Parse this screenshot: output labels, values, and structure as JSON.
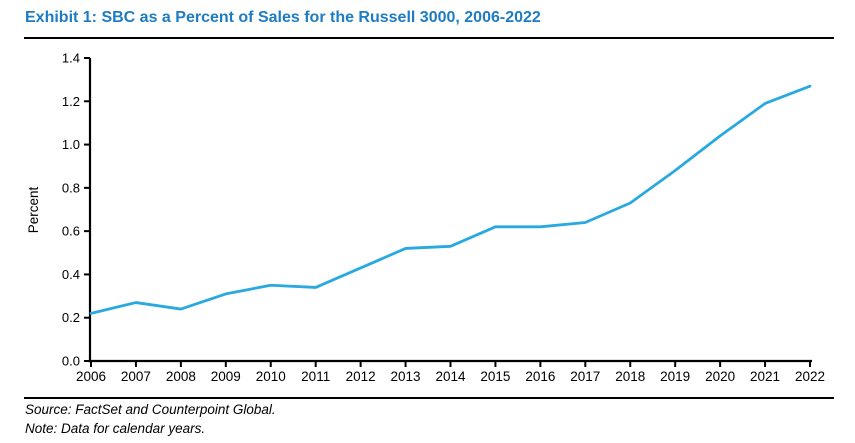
{
  "header": {
    "title": "Exhibit 1: SBC as a Percent of Sales for the Russell 3000, 2006-2022"
  },
  "colors": {
    "title_blue": "#1E7CC2",
    "line_blue": "#29A9DF",
    "axis_black": "#000000"
  },
  "chart_data": {
    "type": "line",
    "title": "Exhibit 1: SBC as a Percent of Sales for the Russell 3000, 2006-2022",
    "categories": [
      "2006",
      "2007",
      "2008",
      "2009",
      "2010",
      "2011",
      "2012",
      "2013",
      "2014",
      "2015",
      "2016",
      "2017",
      "2018",
      "2019",
      "2020",
      "2021",
      "2022"
    ],
    "series": [
      {
        "name": "SBC as a Percent of Sales",
        "values": [
          0.22,
          0.27,
          0.24,
          0.31,
          0.35,
          0.34,
          0.43,
          0.52,
          0.53,
          0.62,
          0.62,
          0.64,
          0.73,
          0.88,
          1.04,
          1.19,
          1.27
        ]
      }
    ],
    "xlabel": "",
    "ylabel": "Percent",
    "ylim": [
      0.0,
      1.4
    ],
    "ytick_labels": [
      "0.0",
      "0.2",
      "0.4",
      "0.6",
      "0.8",
      "1.0",
      "1.2",
      "1.4"
    ],
    "ytick_values": [
      0.0,
      0.2,
      0.4,
      0.6,
      0.8,
      1.0,
      1.2,
      1.4
    ],
    "grid": false,
    "legend_position": "none",
    "line_color": "#29A9DF"
  },
  "footer": {
    "source": "Source: FactSet and Counterpoint Global.",
    "note": "Note: Data for calendar years."
  }
}
